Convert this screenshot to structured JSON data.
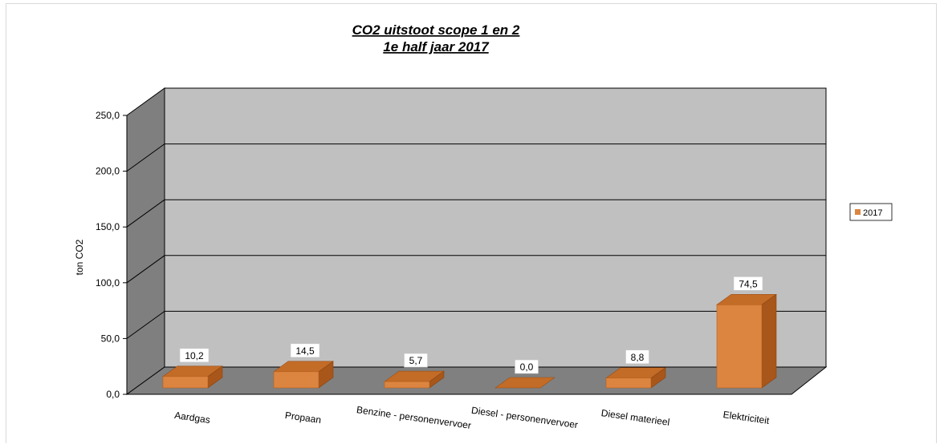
{
  "chart_data": {
    "type": "bar",
    "title_line1": "CO2 uitstoot  scope 1 en 2",
    "title_line2": "1e half jaar 2017",
    "ylabel": "ton CO2",
    "xlabel": "",
    "ylim": [
      0,
      250
    ],
    "yticks": [
      "0,0",
      "50,0",
      "100,0",
      "150,0",
      "200,0",
      "250,0"
    ],
    "ytick_values": [
      0,
      50,
      100,
      150,
      200,
      250
    ],
    "categories": [
      "Aardgas",
      "Propaan",
      "Benzine - personenvervoer",
      "Diesel - personenvervoer",
      "Diesel materieel",
      "Elektriciteit"
    ],
    "series": [
      {
        "name": "2017",
        "values": [
          10.2,
          14.5,
          5.7,
          0.0,
          8.8,
          74.5
        ],
        "labels": [
          "10,2",
          "14,5",
          "5,7",
          "0,0",
          "8,8",
          "74,5"
        ]
      }
    ],
    "grid": true,
    "legend": "right",
    "colors": {
      "bar_front": "#dc8540",
      "bar_top": "#c36c27",
      "bar_side": "#a8561a",
      "back_wall": "#c0c0c0",
      "side_wall": "#7f7f7f",
      "floor": "#808080"
    }
  }
}
